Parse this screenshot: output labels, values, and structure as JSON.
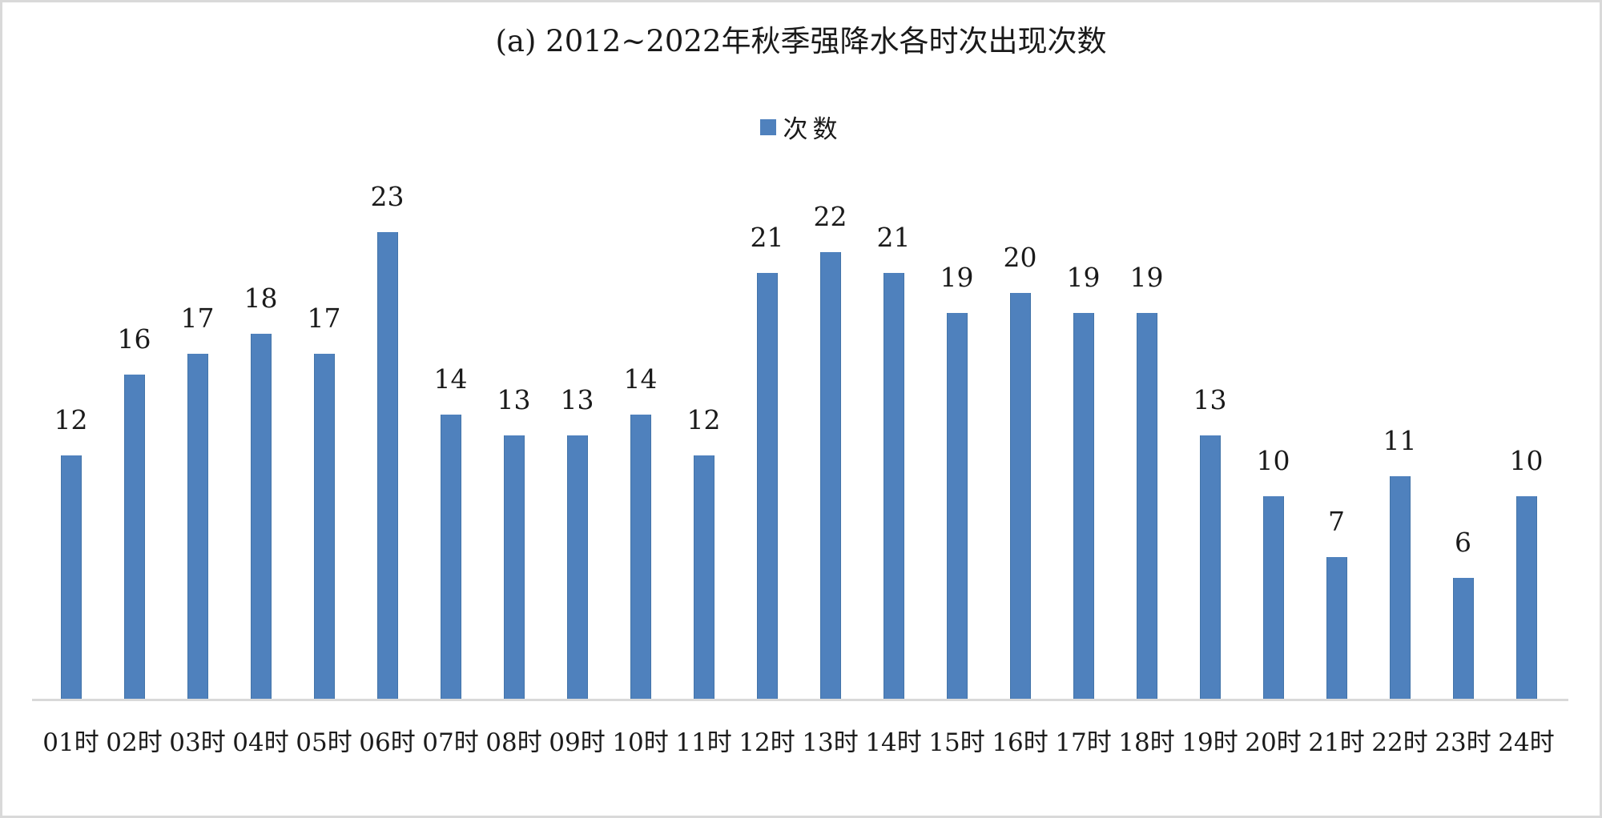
{
  "chart": {
    "title": "(a) 2012~2022年秋季强降水各时次出现次数",
    "legend": {
      "label": "次数",
      "swatch_color": "#4F81BD"
    }
  },
  "chart_data": {
    "type": "bar",
    "title": "(a) 2012~2022年秋季强降水各时次出现次数",
    "series_name": "次数",
    "categories": [
      "01时",
      "02时",
      "03时",
      "04时",
      "05时",
      "06时",
      "07时",
      "08时",
      "09时",
      "10时",
      "11时",
      "12时",
      "13时",
      "14时",
      "15时",
      "16时",
      "17时",
      "18时",
      "19时",
      "20时",
      "21时",
      "22时",
      "23时",
      "24时"
    ],
    "values": [
      12,
      16,
      17,
      18,
      17,
      23,
      14,
      13,
      13,
      14,
      12,
      21,
      22,
      21,
      19,
      20,
      19,
      19,
      13,
      10,
      7,
      11,
      6,
      10
    ],
    "data_labels_visible": true,
    "grid": false,
    "y_axis_visible": false,
    "legend_position": "top-center",
    "bar_color": "#4F81BD",
    "axis_line_color": "#d9d9d9",
    "xlabel": "",
    "ylabel": ""
  }
}
